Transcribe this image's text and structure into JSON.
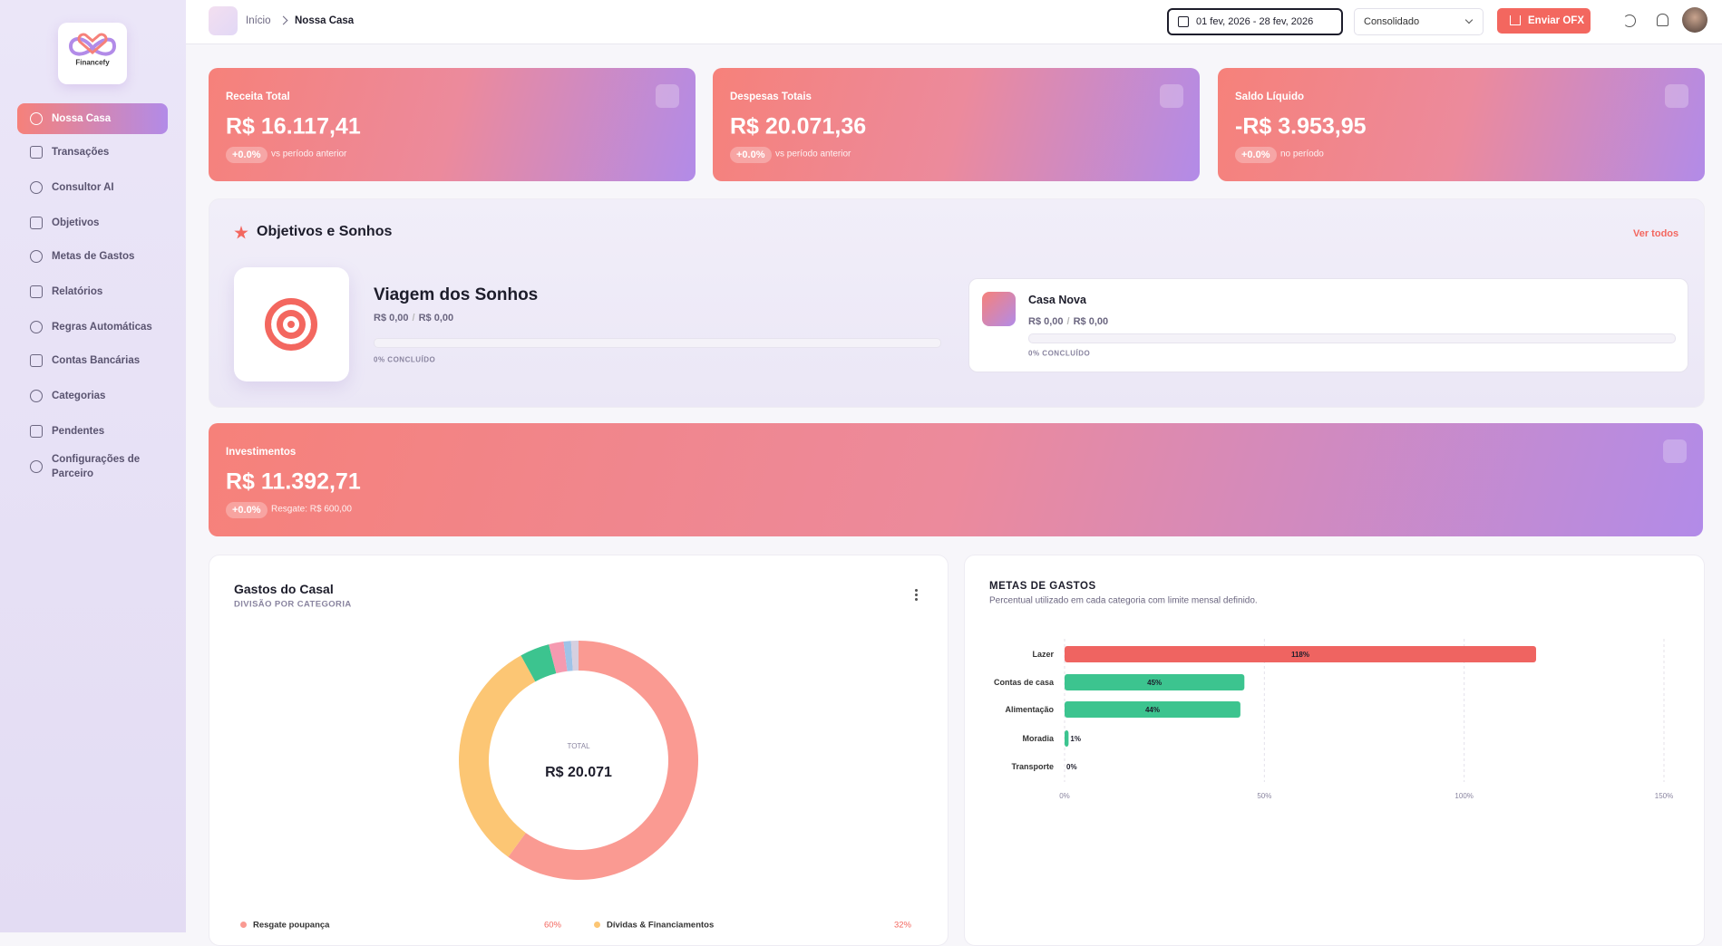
{
  "sidebar": {
    "logo": "Financefy",
    "nav": [
      "Nossa Casa",
      "Transações",
      "Consultor AI",
      "Objetivos",
      "Metas de Gastos",
      "Relatórios",
      "Regras Automáticas",
      "Contas Bancárias",
      "Categorias",
      "Pendentes",
      "Configurações de Parceiro"
    ]
  },
  "header": {
    "breadcrumb": [
      "Início",
      "Nossa Casa"
    ],
    "date_range": "01 fev, 2026 - 28 fev, 2026",
    "scope": "Consolidado",
    "upload_button": "Enviar OFX"
  },
  "stats": [
    {
      "label": "Receita Total",
      "value": "R$ 16.117,41",
      "change": "+0.0%",
      "note": "vs período anterior"
    },
    {
      "label": "Despesas Totais",
      "value": "R$ 20.071,36",
      "change": "+0.0%",
      "note": "vs período anterior"
    },
    {
      "label": "Saldo Líquido",
      "value": "-R$ 3.953,95",
      "change": "+0.0%",
      "note": "no período"
    }
  ],
  "goals": {
    "title": "Objetivos e Sonhos",
    "link": "Ver todos",
    "separator": "/",
    "items": [
      {
        "name": "Viagem dos Sonhos",
        "current": "R$ 0,00",
        "target": "R$ 0,00",
        "status": "0% CONCLUÍDO"
      },
      {
        "name": "Casa Nova",
        "current": "R$ 0,00",
        "target": "R$ 0,00",
        "status": "0% CONCLUÍDO"
      }
    ]
  },
  "investments": {
    "label": "Investimentos",
    "value": "R$ 11.392,71",
    "change": "+0.0%",
    "note": "Resgate: R$ 600,00"
  },
  "chart_data": [
    {
      "type": "pie",
      "donut": true,
      "title": "Gastos do Casal",
      "subtitle": "DIVISÃO POR CATEGORIA",
      "center_label": "TOTAL",
      "center_value": "R$ 20.071",
      "categories": [
        "Resgate poupança",
        "Dívidas & Financiamentos",
        null,
        null,
        null,
        null
      ],
      "values": [
        60,
        32,
        4,
        2,
        1,
        1
      ],
      "value_labels": [
        "60%",
        "32%",
        null,
        null,
        null,
        null
      ],
      "colors": [
        "#fa9a92",
        "#fcc674",
        "#3cc48f",
        "#f59ab0",
        "#9ec3e8",
        "#d6d0e0"
      ]
    },
    {
      "type": "bar",
      "orientation": "horizontal",
      "title": "METAS DE GASTOS",
      "subtitle": "Percentual utilizado em cada categoria com limite mensal definido.",
      "categories": [
        "Lazer",
        "Contas de casa",
        "Alimentação",
        "Moradia",
        "Transporte"
      ],
      "values": [
        118,
        45,
        44,
        1,
        0
      ],
      "value_labels": [
        "118%",
        "45%",
        "44%",
        "1%",
        "0%"
      ],
      "colors": [
        "#ef6461",
        "#3cc48f",
        "#3cc48f",
        "#3cc48f",
        "#3cc48f"
      ],
      "xlim": [
        0,
        150
      ],
      "xticks": [
        {
          "value": 0,
          "label": "0%"
        },
        {
          "value": 50,
          "label": "50%"
        },
        {
          "value": 100,
          "label": "100%"
        },
        {
          "value": 150,
          "label": "150%"
        }
      ],
      "grid": true
    }
  ]
}
